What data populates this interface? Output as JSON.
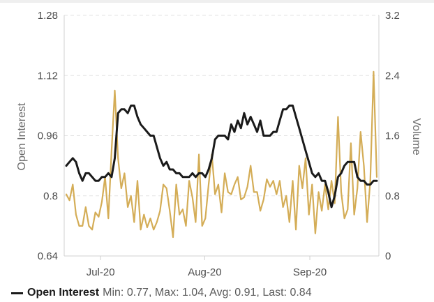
{
  "chart_data": {
    "type": "line",
    "title": "",
    "x_ticks": [
      "Jul-20",
      "Aug-20",
      "Sep-20"
    ],
    "x_tick_positions": [
      10.6,
      42.8,
      75.3
    ],
    "y_left": {
      "label": "Open Interest",
      "range": [
        0.64,
        1.28
      ],
      "ticks": [
        "1.28",
        "1.12",
        "0.96",
        "0.8",
        "0.64"
      ],
      "tick_values": [
        1.28,
        1.12,
        0.96,
        0.8,
        0.64
      ]
    },
    "y_right": {
      "label": "Volume",
      "range": [
        0,
        3.2
      ],
      "ticks": [
        "3.2",
        "2.4",
        "1.6",
        "0.8",
        "0"
      ],
      "tick_values": [
        3.2,
        2.4,
        1.6,
        0.8,
        0
      ]
    },
    "grid": {
      "horizontal": true,
      "style": "dashed"
    },
    "series": [
      {
        "name": "Open Interest",
        "axis": "left",
        "color": "#1a1a1a",
        "values": [
          0.88,
          0.89,
          0.9,
          0.89,
          0.86,
          0.84,
          0.86,
          0.86,
          0.85,
          0.84,
          0.84,
          0.85,
          0.85,
          0.86,
          0.85,
          0.9,
          1.02,
          1.03,
          1.03,
          1.02,
          1.04,
          1.04,
          1.01,
          0.99,
          0.98,
          0.97,
          0.96,
          0.96,
          0.93,
          0.9,
          0.88,
          0.89,
          0.87,
          0.87,
          0.86,
          0.86,
          0.85,
          0.85,
          0.85,
          0.86,
          0.85,
          0.86,
          0.86,
          0.85,
          0.87,
          0.9,
          0.95,
          0.96,
          0.96,
          0.96,
          0.95,
          0.99,
          0.97,
          1.0,
          0.98,
          1.02,
          0.99,
          1.01,
          0.99,
          0.97,
          1.0,
          0.96,
          0.96,
          0.96,
          0.97,
          0.97,
          1.0,
          1.03,
          1.03,
          1.04,
          1.04,
          1.01,
          0.98,
          0.95,
          0.92,
          0.89,
          0.86,
          0.85,
          0.86,
          0.84,
          0.84,
          0.81,
          0.77,
          0.8,
          0.85,
          0.86,
          0.88,
          0.89,
          0.89,
          0.89,
          0.85,
          0.84,
          0.84,
          0.83,
          0.83,
          0.84,
          0.84
        ]
      },
      {
        "name": "Volume",
        "axis": "right",
        "color": "#d4ad57",
        "values": [
          0.82,
          0.74,
          0.95,
          0.55,
          0.4,
          0.4,
          0.65,
          0.4,
          0.35,
          0.58,
          0.52,
          0.72,
          1.05,
          0.5,
          1.4,
          2.2,
          1.3,
          0.9,
          1.1,
          0.65,
          0.8,
          0.45,
          1.0,
          0.35,
          0.55,
          0.38,
          0.5,
          0.35,
          0.45,
          0.6,
          0.95,
          0.9,
          0.6,
          0.25,
          0.95,
          0.55,
          0.62,
          0.4,
          1.0,
          0.78,
          0.45,
          1.35,
          0.4,
          0.5,
          0.95,
          1.35,
          0.82,
          0.95,
          0.58,
          1.1,
          0.85,
          0.82,
          0.95,
          1.05,
          0.75,
          0.78,
          0.92,
          1.2,
          0.85,
          0.85,
          0.6,
          0.75,
          1.02,
          0.92,
          1.0,
          0.82,
          1.0,
          0.65,
          0.8,
          0.45,
          1.0,
          0.35,
          1.2,
          0.9,
          1.3,
          0.55,
          0.95,
          0.3,
          0.85,
          0.6,
          0.95,
          0.62,
          1.0,
          0.7,
          1.85,
          0.85,
          0.5,
          0.62,
          1.5,
          0.55,
          0.9,
          1.65,
          1.2,
          0.45,
          1.0,
          2.45,
          1.05
        ]
      }
    ]
  },
  "legend": {
    "series_name": "Open Interest",
    "stats_text": "Min: 0.77, Max: 1.04, Avg: 0.91, Last: 0.84"
  }
}
